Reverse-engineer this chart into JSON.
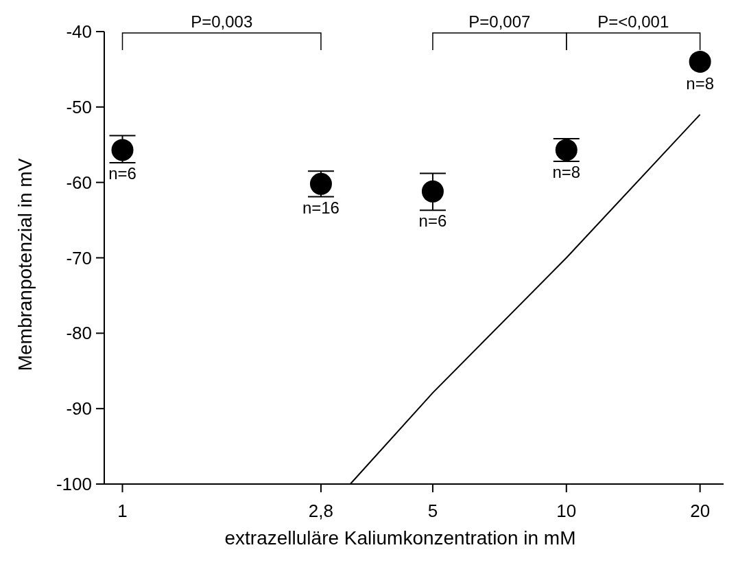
{
  "chart_data": {
    "type": "scatter",
    "xlabel": "extrazelluläre Kaliumkonzentration in mM",
    "ylabel": "Membranpotenzial in mV",
    "log": "x",
    "xlim": [
      0.91,
      22.6
    ],
    "xticks": [
      1,
      {
        "value": 2.8,
        "label": "2,8"
      },
      5,
      10,
      20
    ],
    "ylim": [
      -100,
      -40
    ],
    "yticks": [
      -100,
      -90,
      -80,
      -70,
      -60,
      -50,
      -40
    ],
    "grid": false,
    "marker": "circle",
    "series": [
      {
        "type": "scatter",
        "color": "#000000",
        "x": [
          1,
          2.8,
          5,
          10,
          20
        ],
        "values": [
          -55.7,
          -60.2,
          -61.2,
          -55.7,
          -44.0
        ],
        "errors": [
          [
            -57.4,
            -53.8
          ],
          [
            -61.9,
            -58.5
          ],
          [
            -63.7,
            -58.8
          ],
          [
            -57.2,
            -54.2
          ],
          null
        ]
      },
      {
        "type": "line",
        "color": "#000000",
        "marker": "none",
        "x": [
          3.26,
          5,
          10,
          20
        ],
        "values": [
          -100,
          -87.9,
          -70,
          -51
        ]
      }
    ],
    "annotations": [
      "n=6",
      "n=16",
      "n=6",
      "n=8",
      "n=8",
      "P=0,003",
      "P=0,007",
      "P=<0,001"
    ]
  }
}
